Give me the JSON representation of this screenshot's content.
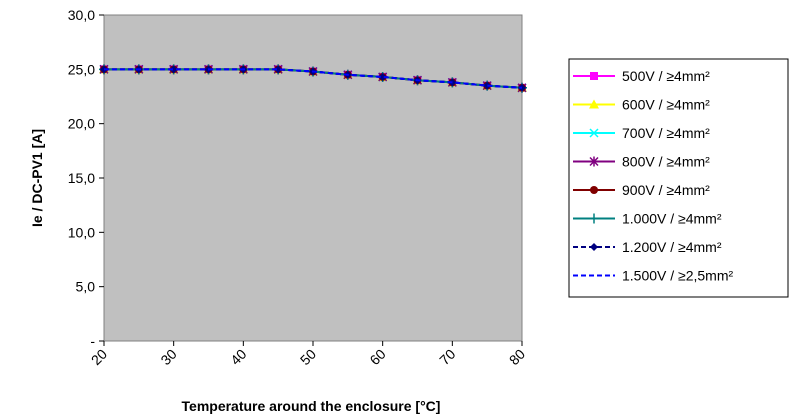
{
  "chart_data": {
    "type": "line",
    "xlabel": "Temperature around the enclosure [°C]",
    "ylabel": "Ie / DC-PV1 [A]",
    "x": [
      20,
      25,
      30,
      35,
      40,
      45,
      50,
      55,
      60,
      65,
      70,
      75,
      80
    ],
    "x_ticks": [
      "20",
      "30",
      "40",
      "50",
      "60",
      "70",
      "80"
    ],
    "ylim": [
      0,
      30
    ],
    "y_ticks": [
      "-",
      "5,0",
      "10,0",
      "15,0",
      "20,0",
      "25,0",
      "30,0"
    ],
    "plot_background": "#c0c0c0",
    "grid": false,
    "legend_position": "right",
    "series": [
      {
        "name": "500V / ≥4mm²",
        "color": "#ff00ff",
        "marker": "square",
        "dash": "solid",
        "values": [
          25.0,
          25.0,
          25.0,
          25.0,
          25.0,
          25.0,
          24.8,
          24.5,
          24.3,
          24.0,
          23.8,
          23.5,
          23.3
        ]
      },
      {
        "name": "600V / ≥4mm²",
        "color": "#ffff00",
        "marker": "triangle",
        "dash": "solid",
        "values": [
          25.0,
          25.0,
          25.0,
          25.0,
          25.0,
          25.0,
          24.8,
          24.5,
          24.3,
          24.0,
          23.8,
          23.5,
          23.3
        ]
      },
      {
        "name": "700V / ≥4mm²",
        "color": "#00ffff",
        "marker": "x",
        "dash": "solid",
        "values": [
          25.0,
          25.0,
          25.0,
          25.0,
          25.0,
          25.0,
          24.8,
          24.5,
          24.3,
          24.0,
          23.8,
          23.5,
          23.3
        ]
      },
      {
        "name": "800V / ≥4mm²",
        "color": "#800080",
        "marker": "star",
        "dash": "solid",
        "values": [
          25.0,
          25.0,
          25.0,
          25.0,
          25.0,
          25.0,
          24.8,
          24.5,
          24.3,
          24.0,
          23.8,
          23.5,
          23.3
        ]
      },
      {
        "name": "900V / ≥4mm²",
        "color": "#800000",
        "marker": "circle",
        "dash": "solid",
        "values": [
          25.0,
          25.0,
          25.0,
          25.0,
          25.0,
          25.0,
          24.8,
          24.5,
          24.3,
          24.0,
          23.8,
          23.5,
          23.3
        ]
      },
      {
        "name": "1.000V / ≥4mm²",
        "color": "#008080",
        "marker": "plus",
        "dash": "solid",
        "values": [
          25.0,
          25.0,
          25.0,
          25.0,
          25.0,
          25.0,
          24.8,
          24.5,
          24.3,
          24.0,
          23.8,
          23.5,
          23.3
        ]
      },
      {
        "name": "1.200V / ≥4mm²",
        "color": "#000080",
        "marker": "diamond",
        "dash": "dashed",
        "values": [
          25.0,
          25.0,
          25.0,
          25.0,
          25.0,
          25.0,
          24.8,
          24.5,
          24.3,
          24.0,
          23.8,
          23.5,
          23.3
        ]
      },
      {
        "name": "1.500V / ≥2,5mm²",
        "color": "#0000ff",
        "marker": "none",
        "dash": "dashed",
        "values": [
          25.0,
          25.0,
          25.0,
          25.0,
          25.0,
          25.0,
          24.8,
          24.5,
          24.3,
          24.0,
          23.8,
          23.5,
          23.3
        ]
      }
    ]
  }
}
